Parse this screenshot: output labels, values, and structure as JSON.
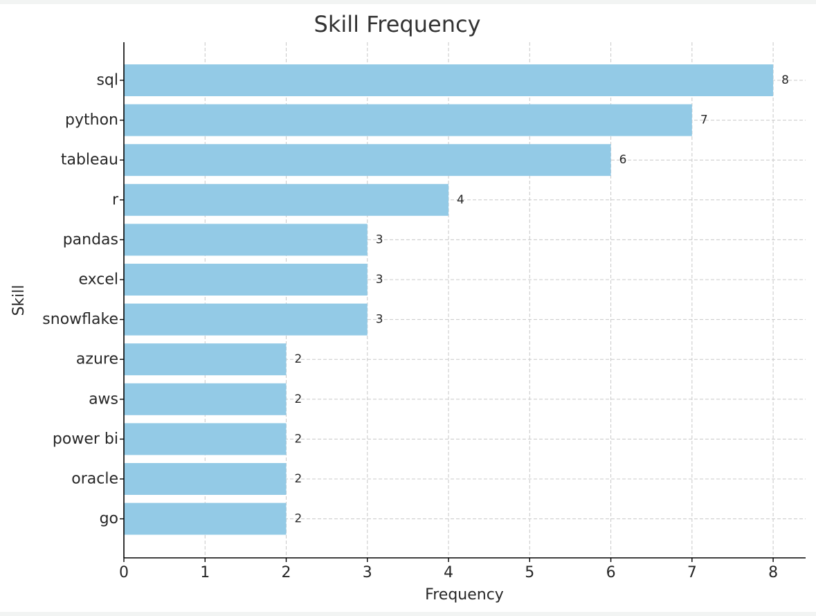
{
  "chart_data": {
    "type": "bar",
    "orientation": "horizontal",
    "title": "Skill Frequency",
    "xlabel": "Frequency",
    "ylabel": "Skill",
    "categories": [
      "sql",
      "python",
      "tableau",
      "r",
      "pandas",
      "excel",
      "snowflake",
      "azure",
      "aws",
      "power bi",
      "oracle",
      "go"
    ],
    "values": [
      8,
      7,
      6,
      4,
      3,
      3,
      3,
      2,
      2,
      2,
      2,
      2
    ],
    "xlim": [
      0,
      8.4
    ],
    "xticks": [
      0,
      1,
      2,
      3,
      4,
      5,
      6,
      7,
      8
    ],
    "grid": true,
    "data_labels": true,
    "bar_color": "#93cae6"
  }
}
